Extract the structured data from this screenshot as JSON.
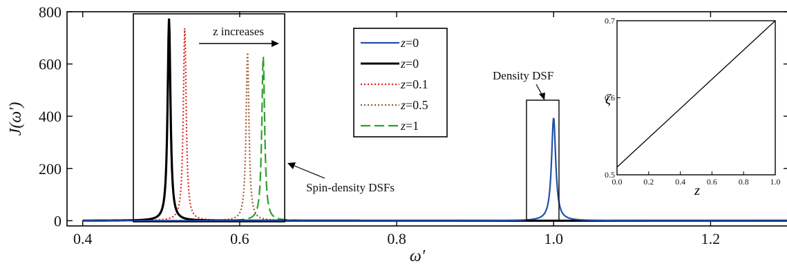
{
  "chart_data": [
    {
      "type": "line",
      "xlabel": "ω′",
      "ylabel": "J(ω′)",
      "xlim": [
        0.38,
        1.3
      ],
      "ylim": [
        -20,
        800
      ],
      "xticks": [
        0.4,
        0.6,
        0.8,
        1.0,
        1.2
      ],
      "xtick_labels": [
        "0.4",
        "0.6",
        "0.8",
        "1.0",
        "1.2"
      ],
      "yticks": [
        0,
        200,
        400,
        600,
        800
      ],
      "ytick_labels": [
        "0",
        "200",
        "400",
        "600",
        "800"
      ],
      "grid": false,
      "legend_position": "top-center",
      "series": [
        {
          "name": "z=0",
          "color": "#1f4fa8",
          "style": "solid",
          "peak_x": 1.0,
          "peak_y": 395,
          "group": "density"
        },
        {
          "name": "z=0",
          "color": "#000000",
          "style": "solid",
          "peak_x": 0.51,
          "peak_y": 775,
          "group": "spin"
        },
        {
          "name": "z=0.1",
          "color": "#e0201b",
          "style": "dotted",
          "peak_x": 0.53,
          "peak_y": 740,
          "group": "spin"
        },
        {
          "name": "z=0.5",
          "color": "#a0522d",
          "style": "dotted",
          "peak_x": 0.61,
          "peak_y": 650,
          "group": "spin"
        },
        {
          "name": "z=1",
          "color": "#2ca02c",
          "style": "dashed",
          "peak_x": 0.63,
          "peak_y": 630,
          "group": "spin"
        }
      ],
      "annotations": {
        "z_increases": "z increases",
        "spin_density": "Spin-density DSFs",
        "density": "Density  DSF"
      }
    },
    {
      "type": "line",
      "xlabel": "z",
      "ylabel": "ζ",
      "xlim": [
        0,
        1
      ],
      "ylim": [
        0.5,
        0.7
      ],
      "xticks": [
        0.0,
        0.2,
        0.4,
        0.6,
        0.8,
        1.0
      ],
      "xtick_labels": [
        "0.0",
        "0.2",
        "0.4",
        "0.6",
        "0.8",
        "1.0"
      ],
      "yticks": [
        0.5,
        0.6,
        0.7
      ],
      "ytick_labels": [
        "0.5",
        "0.6",
        "0.7"
      ],
      "series": [
        {
          "name": "",
          "color": "#000000",
          "x": [
            0.0,
            1.0
          ],
          "y": [
            0.51,
            0.7
          ]
        }
      ]
    }
  ]
}
